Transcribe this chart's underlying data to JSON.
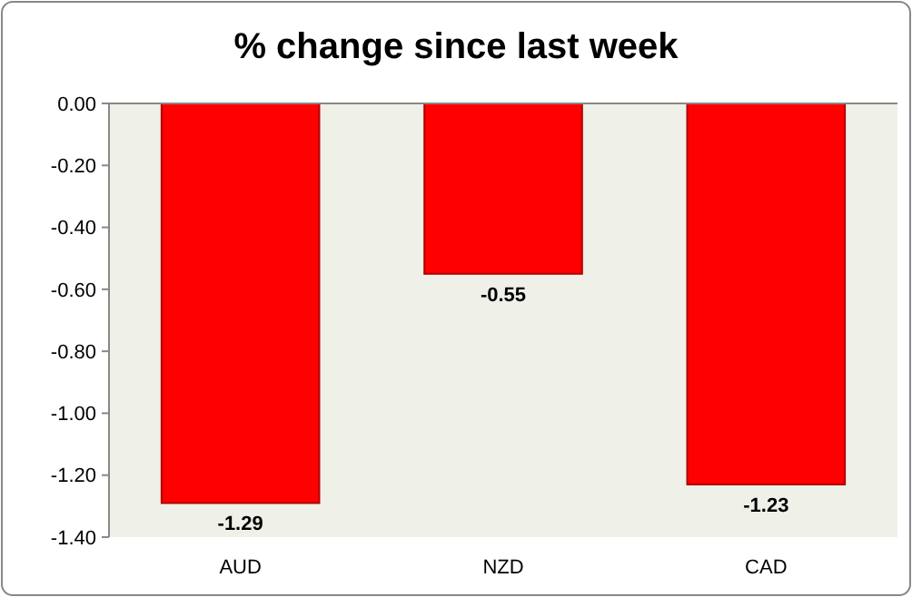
{
  "chart_data": {
    "type": "bar",
    "title": "% change since last week",
    "categories": [
      "AUD",
      "NZD",
      "CAD"
    ],
    "values": [
      -1.29,
      -0.55,
      -1.23
    ],
    "value_labels": [
      "-1.29",
      "-0.55",
      "-1.23"
    ],
    "color": "#ff0000",
    "ylim": [
      -1.4,
      0
    ],
    "yticks": [
      {
        "value": 0,
        "label": "0.00"
      },
      {
        "value": -0.2,
        "label": "-0.20"
      },
      {
        "value": -0.4,
        "label": "-0.40"
      },
      {
        "value": -0.6,
        "label": "-0.60"
      },
      {
        "value": -0.8,
        "label": "-0.80"
      },
      {
        "value": -1,
        "label": "-1.00"
      },
      {
        "value": -1.2,
        "label": "-1.20"
      },
      {
        "value": -1.4,
        "label": "-1.40"
      }
    ],
    "grid": false
  }
}
